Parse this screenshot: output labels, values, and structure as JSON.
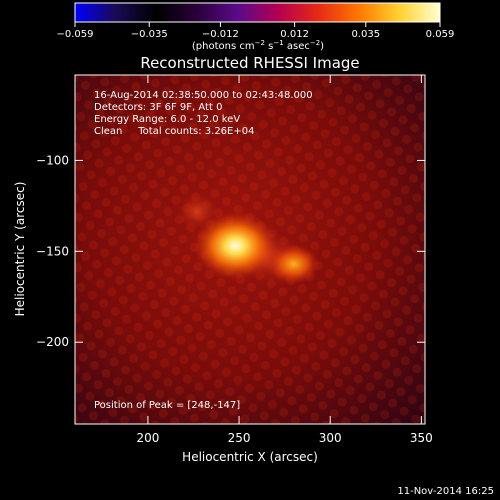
{
  "chart_data": {
    "type": "heatmap",
    "title": "Reconstructed RHESSI Image",
    "xlabel": "Heliocentric X (arcsec)",
    "ylabel": "Heliocentric Y (arcsec)",
    "xlim": [
      160,
      352
    ],
    "ylim": [
      -245,
      -53
    ],
    "x_ticks": [
      200,
      250,
      300,
      350
    ],
    "x_tick_labels": [
      "200",
      "250",
      "300",
      "350"
    ],
    "y_ticks": [
      -100,
      -150,
      -200
    ],
    "y_tick_labels": [
      "−100",
      "−150",
      "−200"
    ],
    "colorbar": {
      "min": -0.059,
      "max": 0.059,
      "tick_values": [
        -0.059,
        -0.035,
        -0.012,
        0.012,
        0.035,
        0.059
      ],
      "tick_labels": [
        "−0.059",
        "−0.035",
        "−0.012",
        "0.012",
        "0.035",
        "0.059"
      ],
      "unit_main": "(photons cm",
      "unit_sup1": "−2",
      "unit_mid": " s",
      "unit_sup2": "−1",
      "unit_end": " asec",
      "unit_sup3": "−2",
      "unit_close": ")",
      "colors": [
        "#0000ff",
        "#1a0a55",
        "#000000",
        "#2a0038",
        "#5a0a8a",
        "#b40050",
        "#e62a14",
        "#ff7800",
        "#ffd232",
        "#ffffd0"
      ]
    },
    "annotations": [
      "16-Aug-2014 02:38:50.000 to 02:43:48.000",
      "Detectors: 3F 6F 9F, Att 0",
      "Energy Range: 6.0 - 12.0 keV",
      "Clean     Total counts: 3.26E+04"
    ],
    "peak_label": "Position of Peak = [248,-147]",
    "sources": [
      {
        "x": 248,
        "y": -147,
        "peak": 0.059
      },
      {
        "x": 280,
        "y": -157,
        "peak": 0.036
      },
      {
        "x": 227,
        "y": -128,
        "peak": 0.02
      }
    ],
    "grid": false
  },
  "footer": {
    "date": "11-Nov-2014 16:25"
  }
}
